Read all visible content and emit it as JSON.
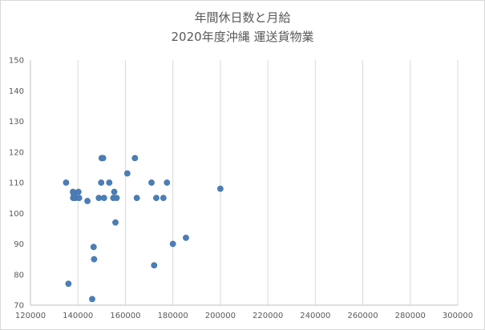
{
  "chart_data": {
    "type": "scatter",
    "title": "年間休日数と月給",
    "subtitle": "2020年度沖縄 運送貨物業",
    "xlabel": "",
    "ylabel": "",
    "xlim": [
      120000,
      300000
    ],
    "ylim": [
      70,
      150
    ],
    "x_ticks": [
      120000,
      140000,
      160000,
      180000,
      200000,
      220000,
      240000,
      260000,
      280000,
      300000
    ],
    "y_ticks": [
      70,
      80,
      90,
      100,
      110,
      120,
      130,
      140,
      150
    ],
    "x_tick_labels": [
      "120000",
      "140000",
      "160000",
      "180000",
      "200000",
      "220000",
      "240000",
      "260000",
      "280000",
      "300000"
    ],
    "y_tick_labels": [
      "70",
      "80",
      "90",
      "100",
      "110",
      "120",
      "130",
      "140",
      "150"
    ],
    "grid": {
      "vertical": true,
      "horizontal": false
    },
    "legend": "none",
    "marker_color": "#4a7ebb",
    "series": [
      {
        "x": [
          135000,
          136000,
          137900,
          138000,
          138300,
          139000,
          140200,
          140500,
          144000,
          146000,
          146600,
          146800,
          148800,
          149800,
          150000,
          150600,
          151000,
          153200,
          154900,
          155300,
          155800,
          156300,
          160800,
          164000,
          164800,
          171000,
          172100,
          173000,
          176000,
          177500,
          180000,
          185500,
          200000
        ],
        "y": [
          110,
          77,
          107,
          105,
          106,
          105,
          107,
          105,
          104,
          72,
          89,
          85,
          105,
          110,
          118,
          118,
          105,
          110,
          105,
          107,
          97,
          105,
          113,
          118,
          105,
          110,
          83,
          105,
          105,
          110,
          90,
          92,
          108
        ]
      }
    ]
  }
}
